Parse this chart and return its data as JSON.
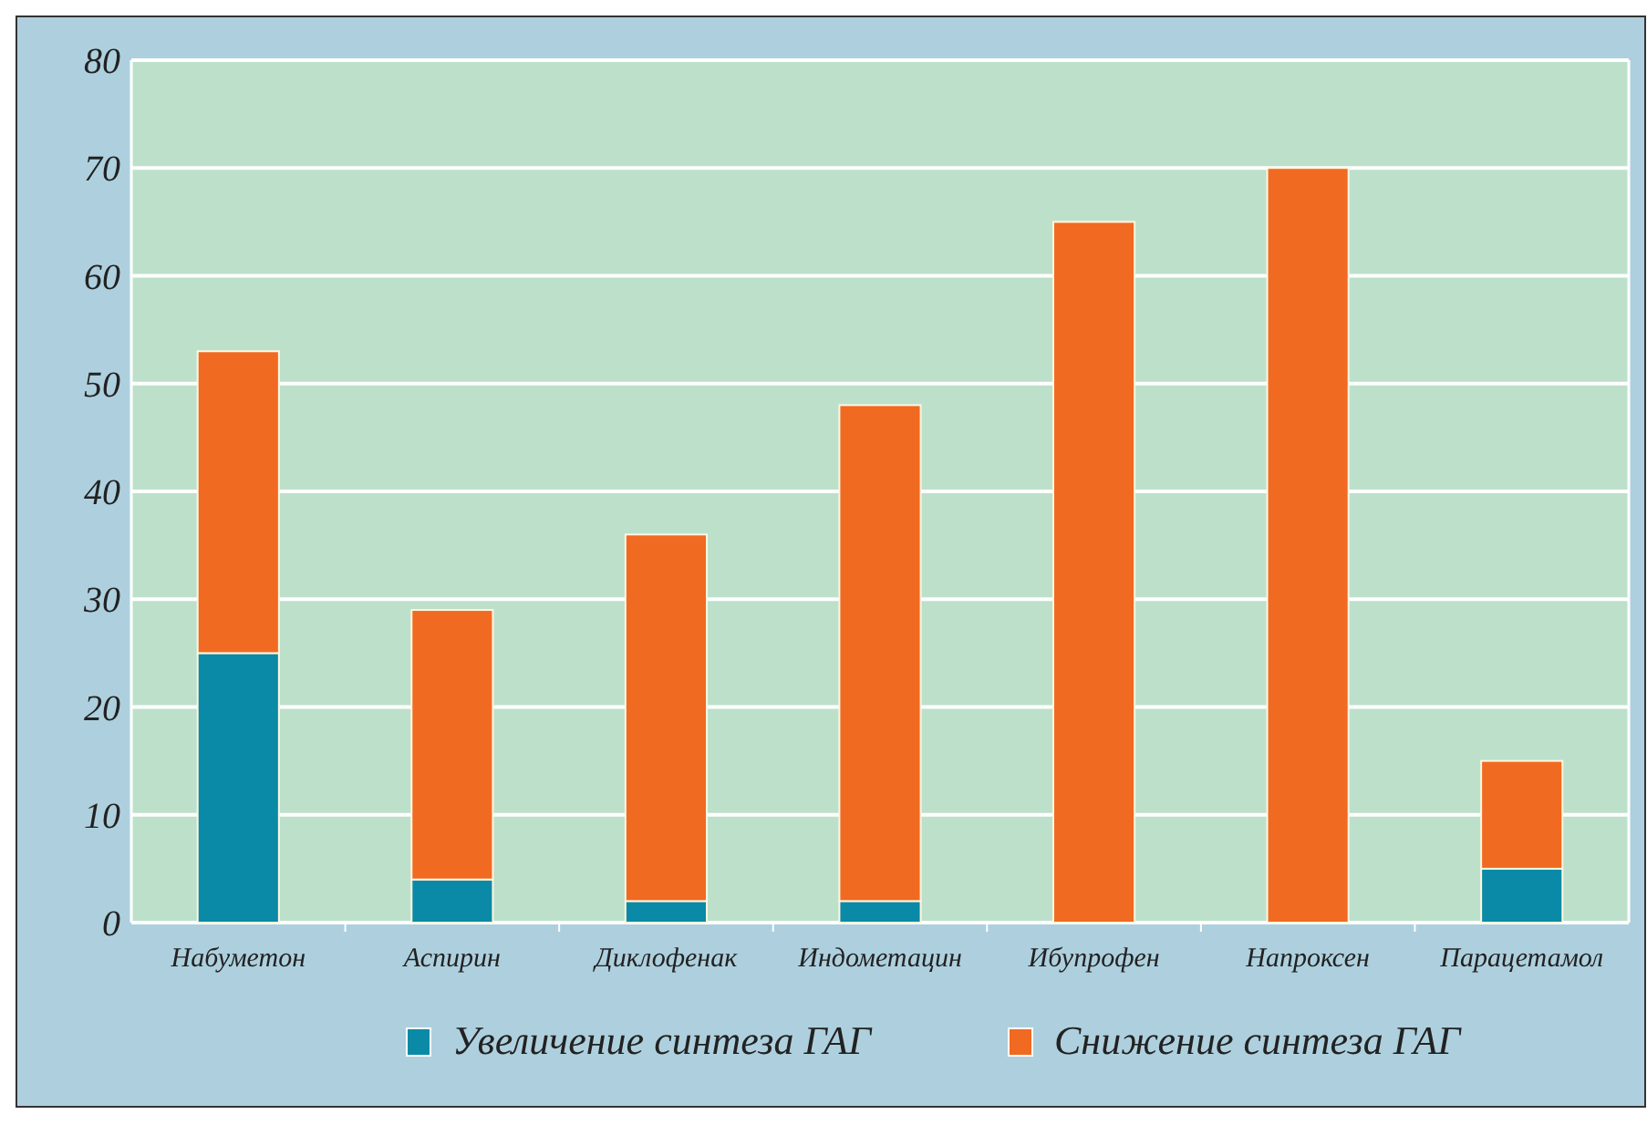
{
  "chart_data": {
    "type": "bar",
    "stacked": true,
    "categories": [
      "Набуметон",
      "Аспирин",
      "Диклофенак",
      "Индометацин",
      "Ибупрофен",
      "Напроксен",
      "Парацетамол"
    ],
    "series": [
      {
        "name": "Увеличение синтеза ГАГ",
        "color": "#0a8aa6",
        "values": [
          25,
          4,
          2,
          2,
          0,
          0,
          5
        ]
      },
      {
        "name": "Снижение синтеза ГАГ",
        "color": "#f06a22",
        "values": [
          28,
          25,
          34,
          46,
          65,
          70,
          10
        ]
      }
    ],
    "ylim": [
      0,
      80
    ],
    "yticks": [
      0,
      10,
      20,
      30,
      40,
      50,
      60,
      70,
      80
    ],
    "grid": "y",
    "legend": "bottom"
  }
}
